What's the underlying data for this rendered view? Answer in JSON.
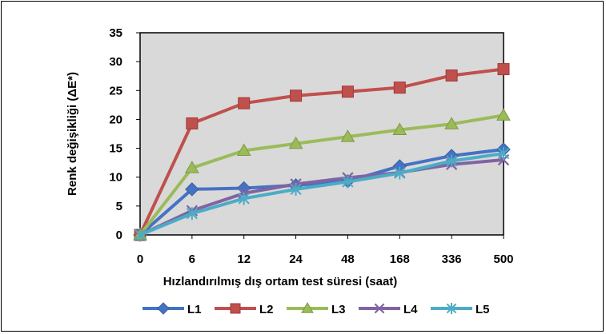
{
  "chart_data": {
    "type": "line",
    "categories": [
      "0",
      "6",
      "12",
      "24",
      "48",
      "168",
      "336",
      "500"
    ],
    "xlabel": "Hızlandırılmış dış ortam test süresi (saat)",
    "ylabel": "Renk değişikliği (ΔE*)",
    "ylim": [
      0,
      35
    ],
    "yticks": [
      "0",
      "5",
      "10",
      "15",
      "20",
      "25",
      "30",
      "35"
    ],
    "grid": false,
    "plot_background": "#d9d9d9",
    "legend_position": "bottom",
    "series": [
      {
        "name": "L1",
        "color": "#4472c4",
        "marker": "diamond",
        "values": [
          0,
          7.9,
          8.1,
          8.6,
          9.3,
          11.9,
          13.7,
          14.8
        ]
      },
      {
        "name": "L2",
        "color": "#c0504d",
        "marker": "square",
        "values": [
          0,
          19.3,
          22.8,
          24.1,
          24.8,
          25.5,
          27.6,
          28.7
        ]
      },
      {
        "name": "L3",
        "color": "#9bbb59",
        "marker": "triangle",
        "values": [
          0,
          11.6,
          14.6,
          15.8,
          17.0,
          18.2,
          19.2,
          20.7
        ]
      },
      {
        "name": "L4",
        "color": "#8064a2",
        "marker": "x",
        "values": [
          0,
          4.2,
          7.2,
          8.8,
          9.9,
          10.8,
          12.2,
          13.0
        ]
      },
      {
        "name": "L5",
        "color": "#4bacc6",
        "marker": "asterisk",
        "values": [
          0,
          3.7,
          6.3,
          7.9,
          9.2,
          10.7,
          12.8,
          14.1
        ]
      }
    ]
  }
}
